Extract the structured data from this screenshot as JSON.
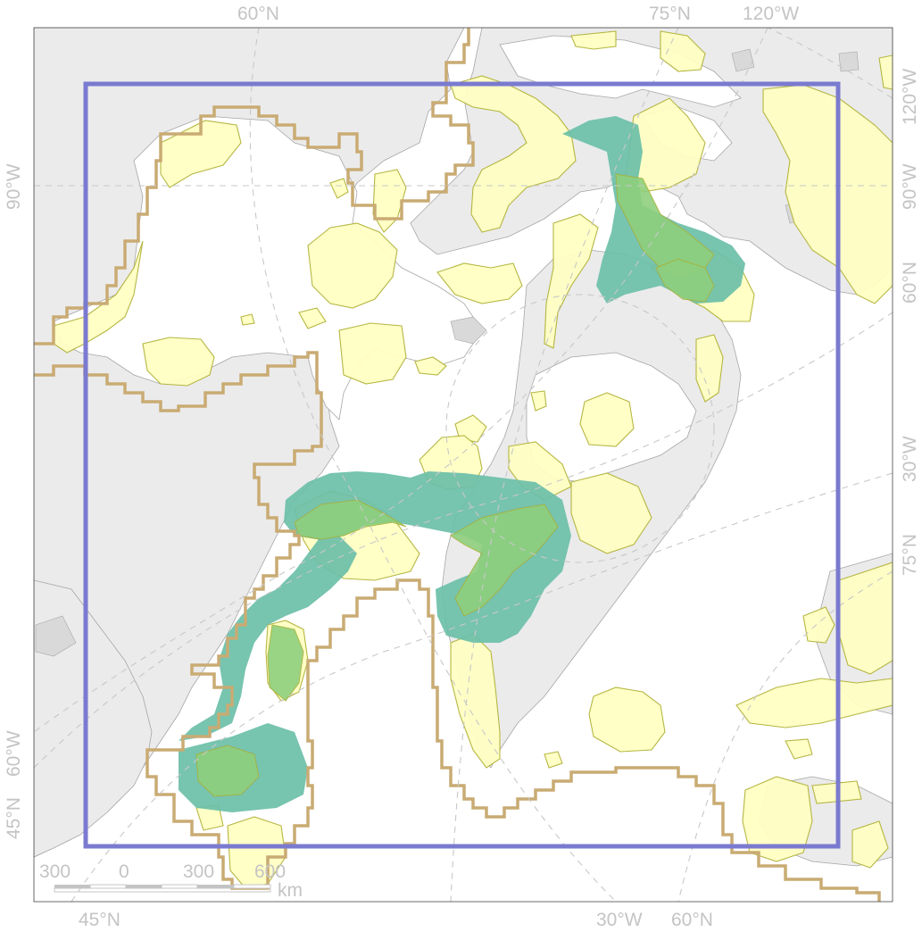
{
  "map": {
    "graticule_labels": {
      "top": [
        "60°N",
        "75°N",
        "120°W"
      ],
      "left": [
        "90°W",
        "60°W",
        "45°N"
      ],
      "right": [
        "120°W",
        "90°W",
        "60°N",
        "30°W",
        "75°N"
      ],
      "bottom": [
        "45°N",
        "30°W",
        "60°N"
      ]
    },
    "scale_bar": {
      "ticks": [
        "300",
        "0",
        "300",
        "600"
      ],
      "unit": "km"
    },
    "colors": {
      "land": "#ebebeb",
      "ice": "#ffffff",
      "eez_boundary": "#c9ab73",
      "yellow_area": "#ffffc4",
      "teal_area": "#6bbfa8",
      "green_area": "#8ed07e",
      "study_frame": "#7a7ad0"
    }
  }
}
